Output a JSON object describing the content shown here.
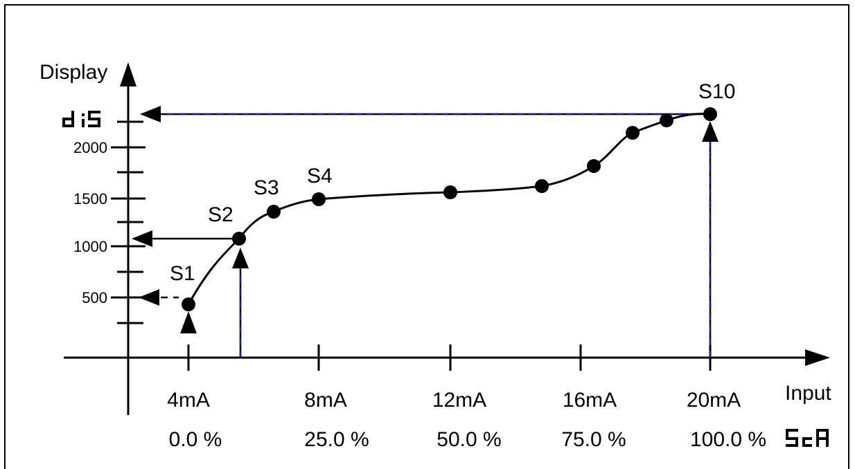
{
  "axes": {
    "y_title": "Display",
    "x_title": "Input",
    "y_ticks": [
      "2000",
      "1500",
      "1000",
      "500"
    ],
    "y_top_code": "d iS",
    "x_ma_labels": [
      "4mA",
      "8mA",
      "12mA",
      "16mA",
      "20mA"
    ],
    "x_pct_labels": [
      "0.0 %",
      "25.0 %",
      "50.0 %",
      "75.0 %",
      "100.0 %"
    ],
    "x_end_code": "ScA"
  },
  "points": {
    "labels": [
      "S1",
      "S2",
      "S3",
      "S4",
      "S10"
    ]
  },
  "chart_data": {
    "type": "line",
    "xlabel": "Input",
    "ylabel": "Display",
    "series": [
      {
        "x": [
          4.0,
          5.6,
          6.6,
          8.0,
          12.0,
          14.8,
          16.4,
          17.6,
          18.6,
          20.0
        ],
        "y": [
          450,
          1080,
          1350,
          1500,
          1560,
          1620,
          1810,
          2110,
          2230,
          2290
        ]
      }
    ]
  }
}
